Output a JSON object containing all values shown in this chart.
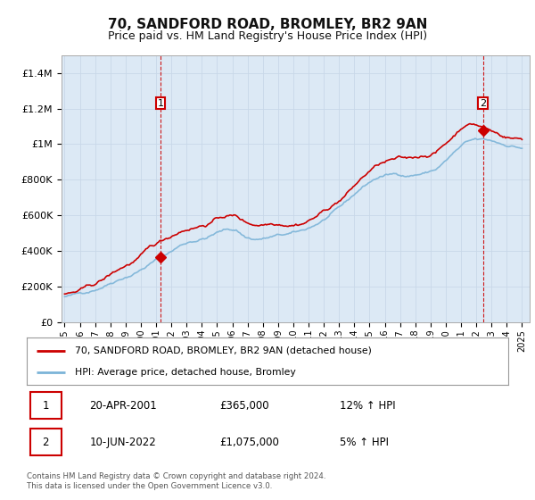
{
  "title": "70, SANDFORD ROAD, BROMLEY, BR2 9AN",
  "subtitle": "Price paid vs. HM Land Registry's House Price Index (HPI)",
  "background_color": "#dce9f5",
  "plot_bg_color": "#dce9f5",
  "ylim": [
    0,
    1500000
  ],
  "yticks": [
    0,
    200000,
    400000,
    600000,
    800000,
    1000000,
    1200000,
    1400000
  ],
  "ytick_labels": [
    "£0",
    "£200K",
    "£400K",
    "£600K",
    "£800K",
    "£1M",
    "£1.2M",
    "£1.4M"
  ],
  "marker1_x": 2001.3,
  "marker1_y": 365000,
  "marker2_x": 2022.44,
  "marker2_y": 1075000,
  "legend_line1": "70, SANDFORD ROAD, BROMLEY, BR2 9AN (detached house)",
  "legend_line2": "HPI: Average price, detached house, Bromley",
  "annotation1": [
    "1",
    "20-APR-2001",
    "£365,000",
    "12% ↑ HPI"
  ],
  "annotation2": [
    "2",
    "10-JUN-2022",
    "£1,075,000",
    "5% ↑ HPI"
  ],
  "footer": "Contains HM Land Registry data © Crown copyright and database right 2024.\nThis data is licensed under the Open Government Licence v3.0.",
  "hpi_color": "#7cb4d8",
  "price_color": "#cc0000",
  "dashed_line_color": "#cc0000",
  "xmin": 1995.0,
  "xmax": 2025.5
}
